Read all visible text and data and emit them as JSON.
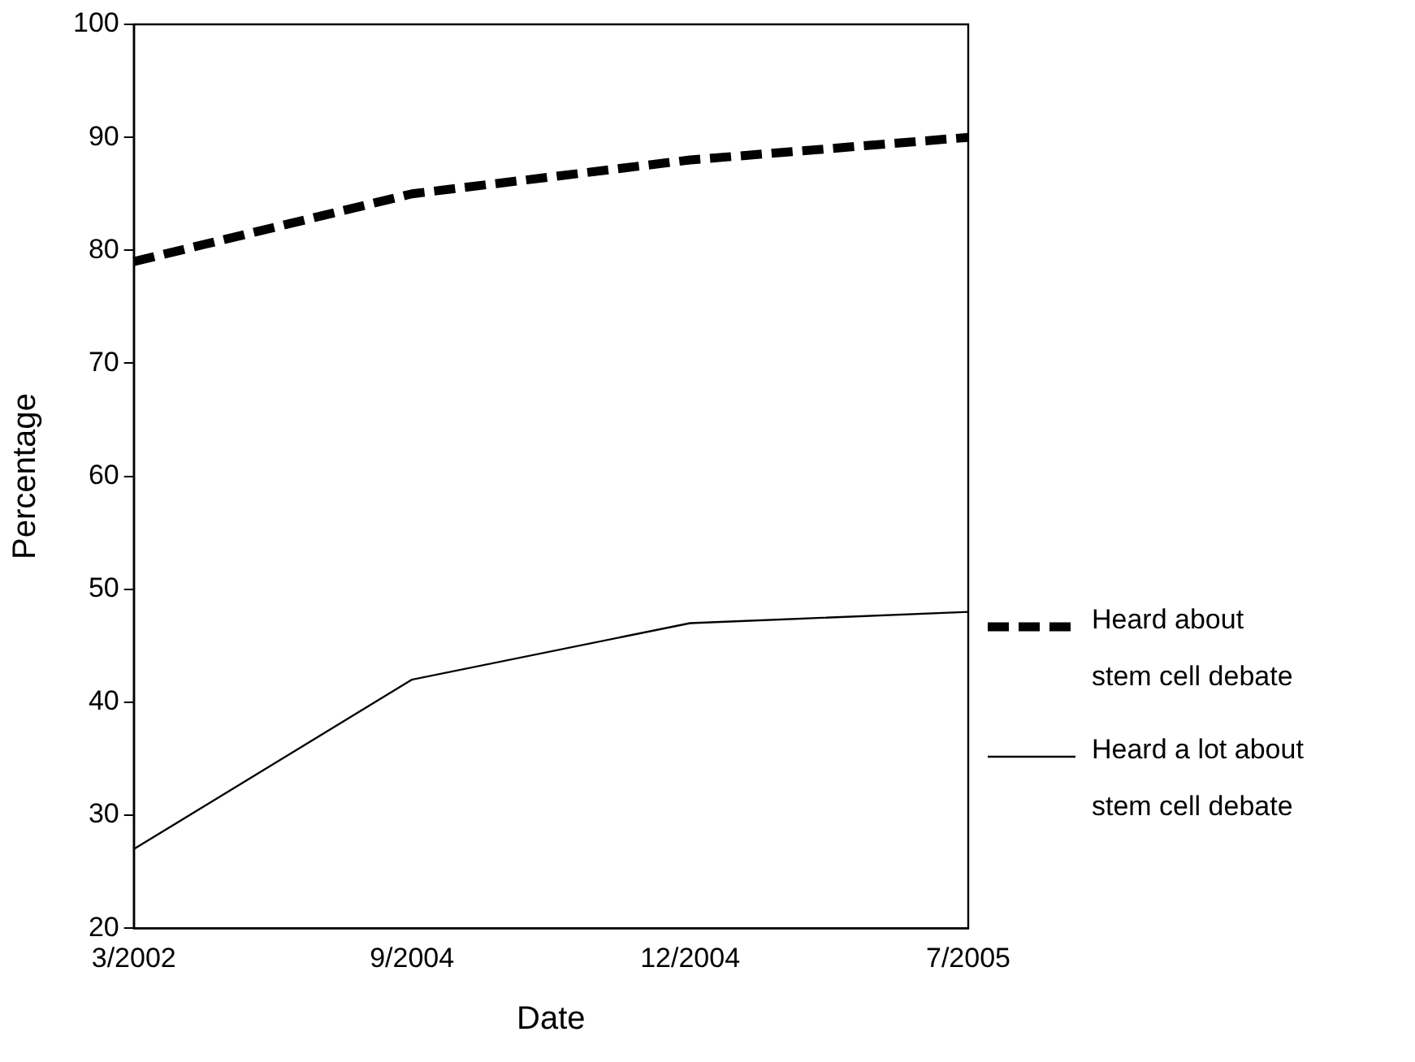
{
  "chart_data": {
    "type": "line",
    "xlabel": "Date",
    "ylabel": "Percentage",
    "categories": [
      "3/2002",
      "9/2004",
      "12/2004",
      "7/2005"
    ],
    "series": [
      {
        "name": "Heard about stem cell debate",
        "color": "#000000",
        "line_style": "dashed",
        "values": [
          79,
          85,
          88,
          90
        ]
      },
      {
        "name": "Heard a lot about stem cell debate",
        "color": "#000000",
        "line_style": "solid",
        "values": [
          27,
          42,
          47,
          48
        ]
      }
    ],
    "ylim": [
      20,
      100
    ],
    "yticks": [
      20,
      30,
      40,
      50,
      60,
      70,
      80,
      90,
      100
    ],
    "grid": false,
    "legend": "right",
    "marker": "none"
  }
}
